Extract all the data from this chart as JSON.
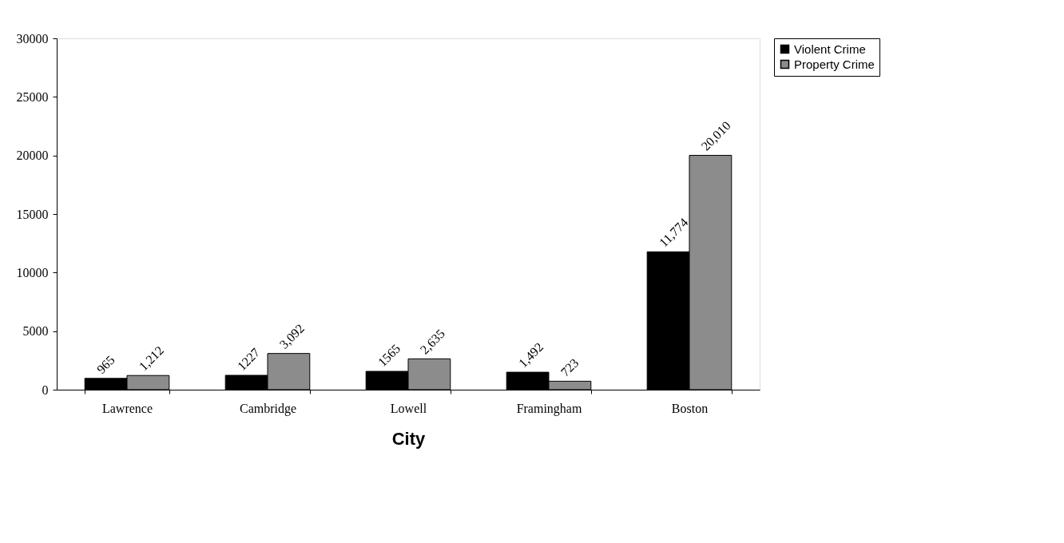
{
  "chart_data": {
    "type": "bar",
    "xlabel": "City",
    "categories": [
      "Lawrence",
      "Cambridge",
      "Lowell",
      "Framingham",
      "Boston"
    ],
    "series": [
      {
        "name": "Violent Crime",
        "color": "#000000",
        "values": [
          965,
          1227,
          1565,
          1492,
          11774
        ],
        "value_labels": [
          "965",
          "1227",
          "1565",
          "1,492",
          "11,774"
        ]
      },
      {
        "name": "Property Crime",
        "color": "#8c8c8c",
        "values": [
          1212,
          3092,
          2635,
          723,
          20010
        ],
        "value_labels": [
          "1,212",
          "3,092",
          "2,635",
          "723",
          "20,010"
        ]
      }
    ],
    "ylim": [
      0,
      30000
    ],
    "yticks": [
      0,
      5000,
      10000,
      15000,
      20000,
      25000,
      30000
    ],
    "grid": false,
    "legend": "right"
  }
}
